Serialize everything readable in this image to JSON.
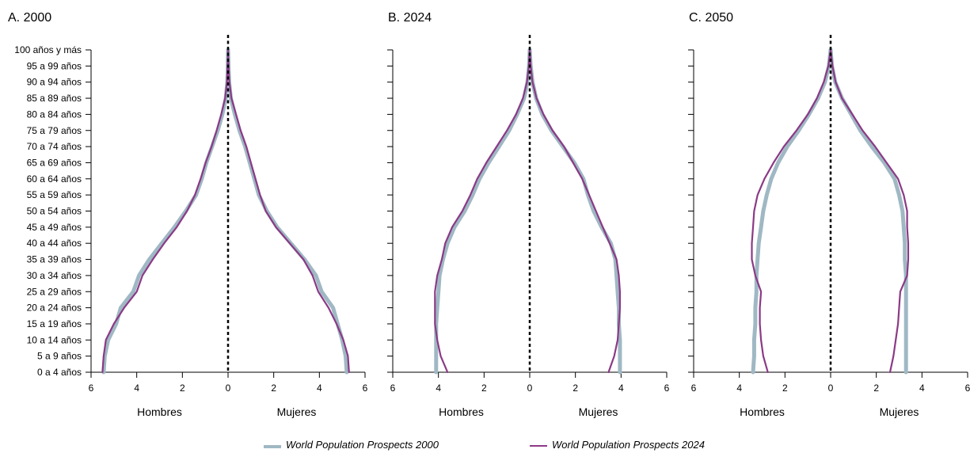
{
  "colors": {
    "wpp2000": "#9fb8c4",
    "wpp2024": "#8b3a86"
  },
  "age_groups": [
    "0 a 4 años",
    "5 a 9 años",
    "10 a 14 años",
    "15 a 19 años",
    "20 a 24 años",
    "25 a 29 años",
    "30 a 34 años",
    "35 a 39 años",
    "40 a 44 años",
    "45 a 49 años",
    "50 a 54 años",
    "55 a 59 años",
    "60 a 64 años",
    "65 a 69 años",
    "70 a 74 años",
    "75 a 79 años",
    "80 a 84 años",
    "85 a 89 años",
    "90 a 94 años",
    "95 a 99 años",
    "100 años y más"
  ],
  "x_ticks": [
    "6",
    "4",
    "2",
    "0",
    "2",
    "4",
    "6"
  ],
  "xlabels": {
    "left": "Hombres",
    "right": "Mujeres"
  },
  "legend": [
    {
      "label": "World Population Prospects 2000",
      "color": "#9fb8c4"
    },
    {
      "label": "World Population Prospects 2024",
      "color": "#8b3a86"
    }
  ],
  "chart_data": [
    {
      "type": "line",
      "title": "A. 2000",
      "xlim": [
        -6,
        6
      ],
      "series": [
        {
          "name": "World Population Prospects 2000",
          "men": [
            5.45,
            5.4,
            5.25,
            4.9,
            4.7,
            4.15,
            3.9,
            3.45,
            2.9,
            2.35,
            1.85,
            1.4,
            1.15,
            0.95,
            0.7,
            0.45,
            0.25,
            0.1,
            0.03,
            0.01,
            0.0
          ],
          "women": [
            5.2,
            5.15,
            5.0,
            4.8,
            4.6,
            4.1,
            3.85,
            3.35,
            2.75,
            2.15,
            1.7,
            1.35,
            1.15,
            0.95,
            0.75,
            0.5,
            0.3,
            0.12,
            0.05,
            0.02,
            0.0
          ]
        },
        {
          "name": "World Population Prospects 2024",
          "men": [
            5.5,
            5.45,
            5.35,
            5.0,
            4.55,
            4.0,
            3.75,
            3.3,
            2.8,
            2.25,
            1.8,
            1.45,
            1.2,
            0.98,
            0.72,
            0.5,
            0.3,
            0.13,
            0.05,
            0.02,
            0.0
          ],
          "women": [
            5.3,
            5.25,
            5.05,
            4.75,
            4.4,
            3.95,
            3.7,
            3.3,
            2.7,
            2.1,
            1.65,
            1.4,
            1.2,
            1.0,
            0.8,
            0.55,
            0.35,
            0.15,
            0.06,
            0.02,
            0.0
          ]
        }
      ]
    },
    {
      "type": "line",
      "title": "B. 2024",
      "xlim": [
        -6,
        6
      ],
      "series": [
        {
          "name": "World Population Prospects 2000",
          "men": [
            4.1,
            4.1,
            4.1,
            4.1,
            4.05,
            4.0,
            3.95,
            3.8,
            3.6,
            3.3,
            2.85,
            2.5,
            2.2,
            1.8,
            1.35,
            0.9,
            0.55,
            0.25,
            0.1,
            0.03,
            0.0
          ],
          "women": [
            3.95,
            3.95,
            3.95,
            3.9,
            3.9,
            3.85,
            3.8,
            3.75,
            3.55,
            3.15,
            2.8,
            2.55,
            2.35,
            1.95,
            1.45,
            0.95,
            0.55,
            0.28,
            0.12,
            0.04,
            0.0
          ]
        },
        {
          "name": "World Population Prospects 2024",
          "men": [
            3.6,
            3.9,
            4.05,
            4.15,
            4.15,
            4.15,
            4.05,
            3.85,
            3.7,
            3.4,
            2.95,
            2.6,
            2.3,
            1.9,
            1.45,
            1.0,
            0.6,
            0.3,
            0.12,
            0.04,
            0.0
          ],
          "women": [
            3.45,
            3.7,
            3.85,
            3.9,
            3.95,
            3.95,
            3.9,
            3.8,
            3.5,
            3.2,
            2.9,
            2.6,
            2.3,
            1.9,
            1.5,
            1.0,
            0.6,
            0.3,
            0.12,
            0.04,
            0.0
          ]
        }
      ]
    },
    {
      "type": "line",
      "title": "C. 2050",
      "xlim": [
        -6,
        6
      ],
      "series": [
        {
          "name": "World Population Prospects 2000",
          "men": [
            3.4,
            3.35,
            3.35,
            3.3,
            3.3,
            3.25,
            3.25,
            3.2,
            3.15,
            3.05,
            2.95,
            2.8,
            2.6,
            2.3,
            1.9,
            1.4,
            0.95,
            0.55,
            0.25,
            0.08,
            0.0
          ],
          "women": [
            3.3,
            3.3,
            3.3,
            3.3,
            3.3,
            3.3,
            3.3,
            3.25,
            3.25,
            3.2,
            3.15,
            3.0,
            2.8,
            2.35,
            1.8,
            1.3,
            0.9,
            0.5,
            0.2,
            0.06,
            0.0
          ]
        },
        {
          "name": "World Population Prospects 2024",
          "men": [
            2.75,
            2.95,
            3.05,
            3.1,
            3.1,
            3.05,
            3.3,
            3.45,
            3.45,
            3.4,
            3.35,
            3.2,
            2.9,
            2.5,
            2.05,
            1.5,
            1.0,
            0.6,
            0.3,
            0.1,
            0.0
          ],
          "women": [
            2.6,
            2.75,
            2.85,
            2.95,
            3.0,
            3.05,
            3.35,
            3.4,
            3.4,
            3.35,
            3.35,
            3.2,
            2.95,
            2.45,
            1.95,
            1.4,
            0.95,
            0.5,
            0.22,
            0.08,
            0.0
          ]
        }
      ]
    }
  ]
}
